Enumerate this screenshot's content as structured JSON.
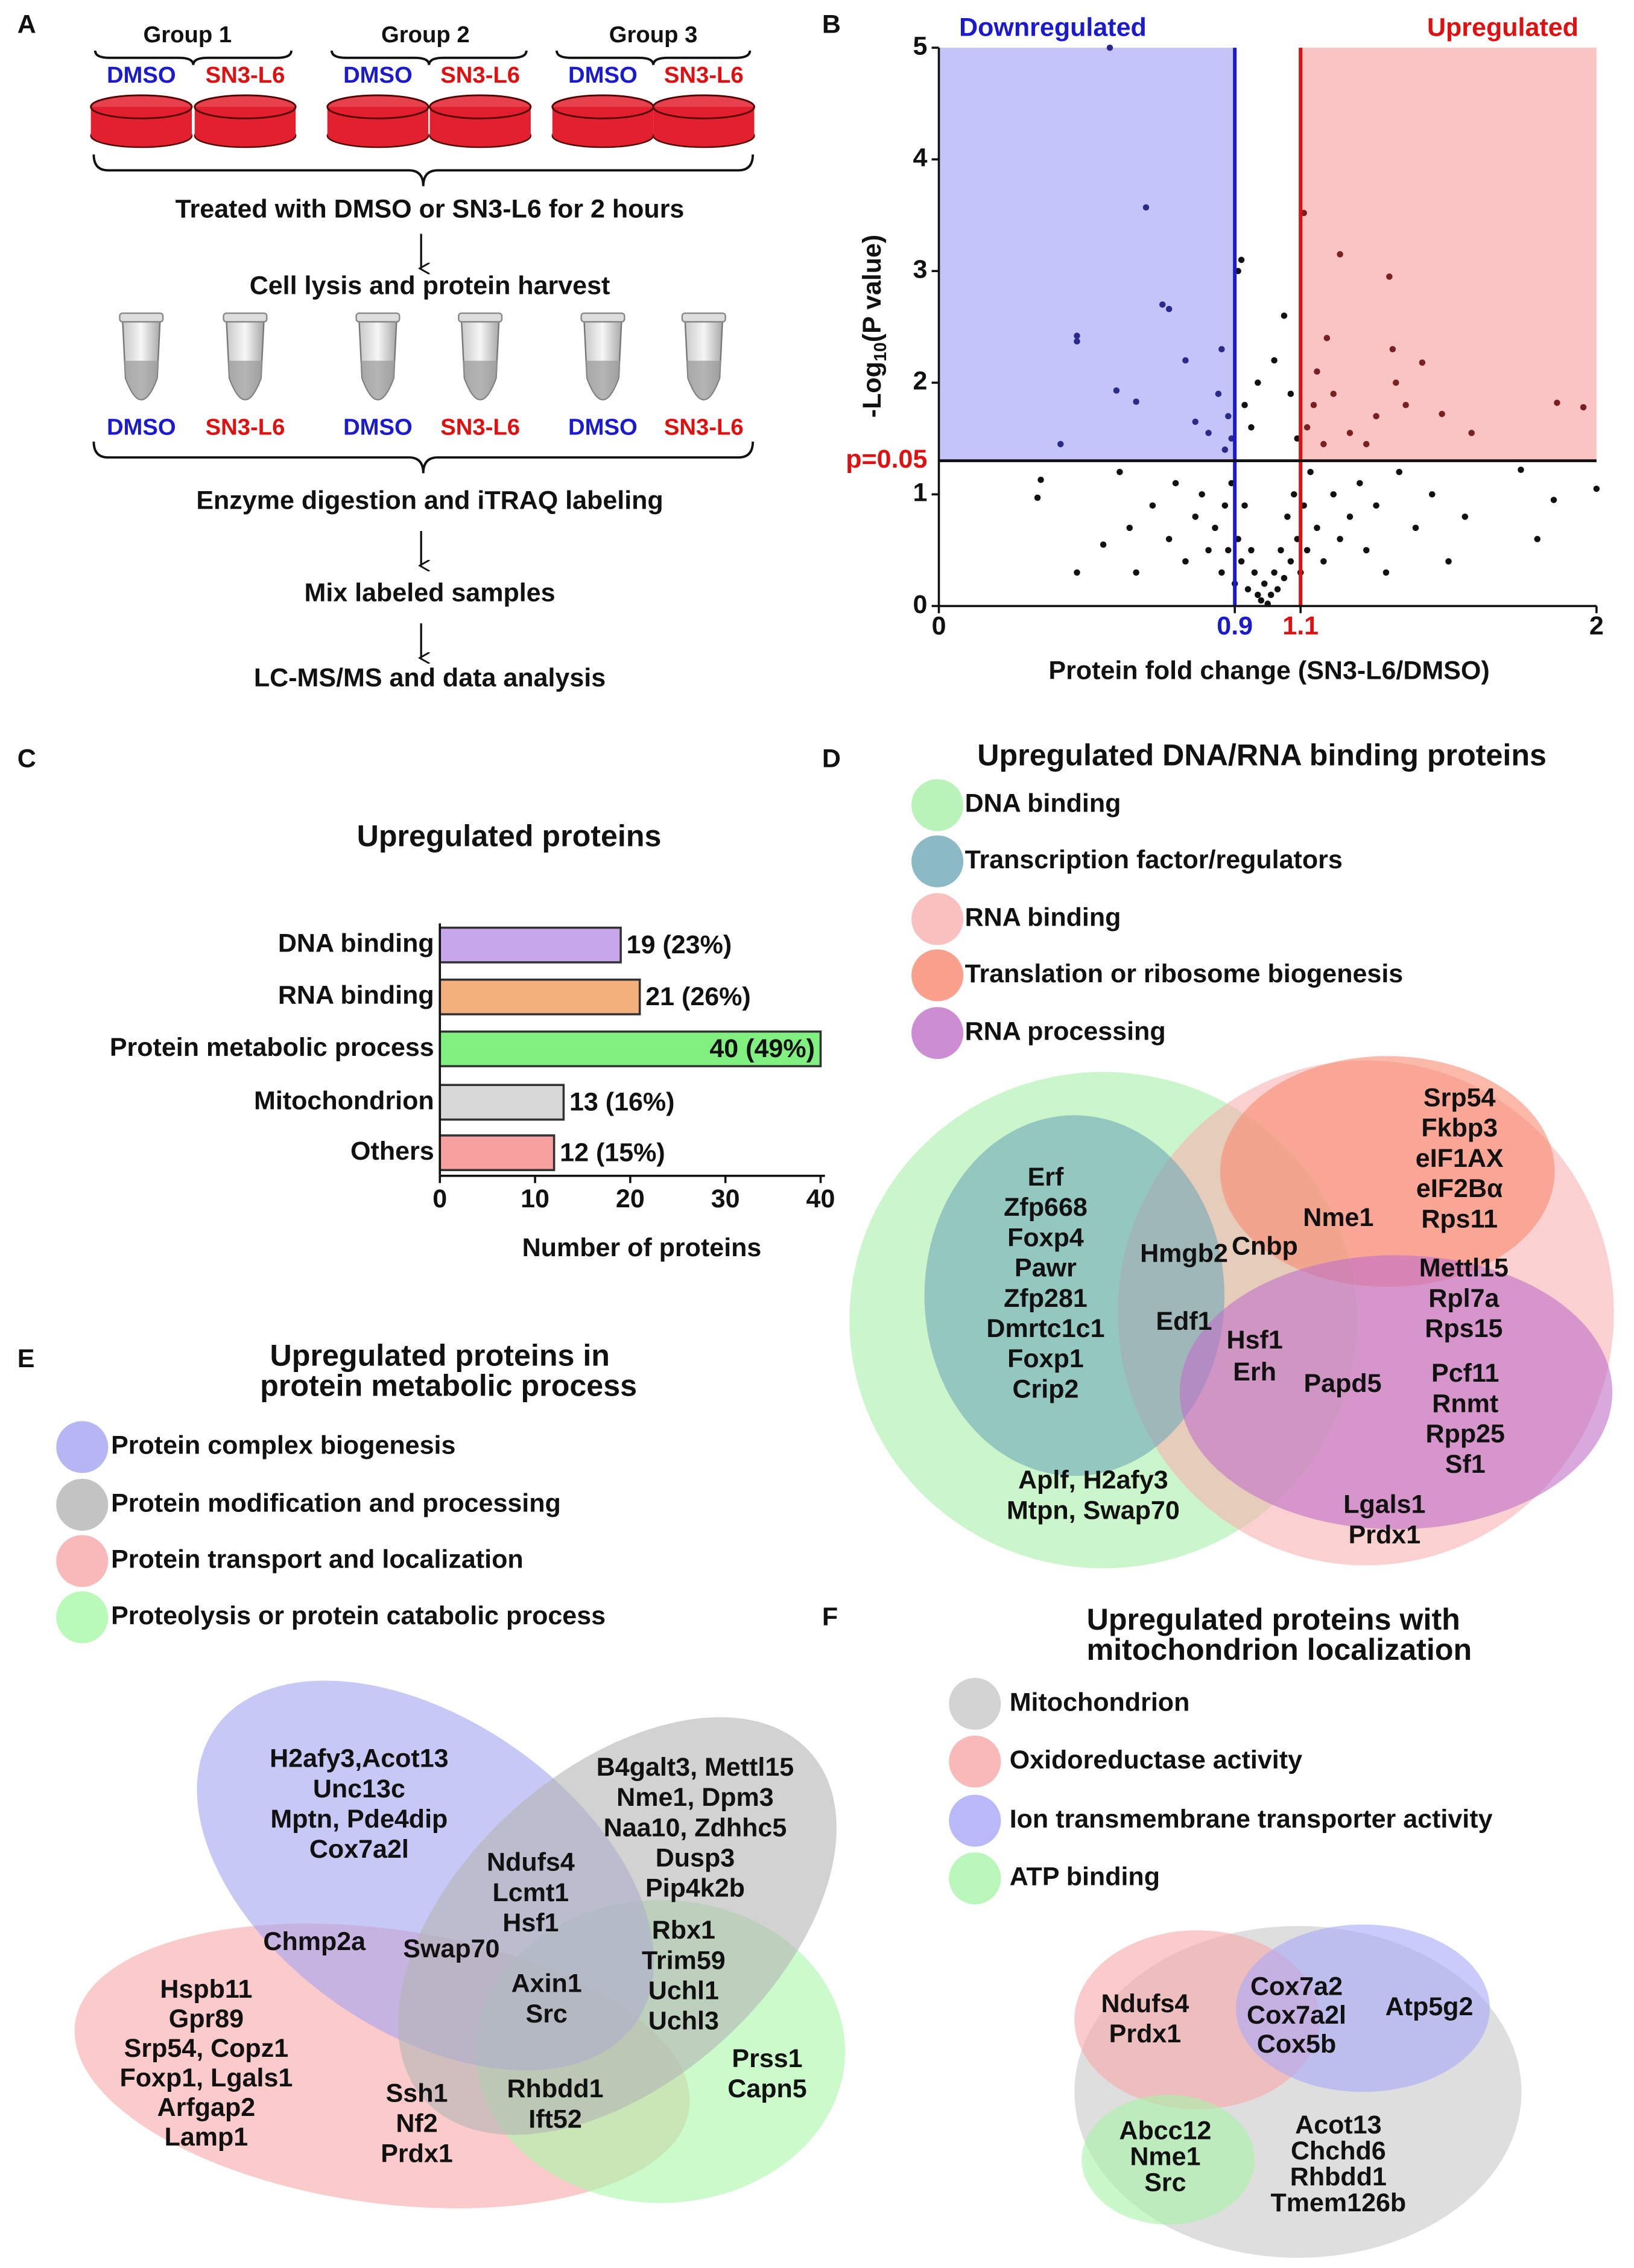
{
  "panel_labels": [
    "A",
    "B",
    "C",
    "D",
    "E",
    "F"
  ],
  "workflow": {
    "groups": [
      "Group 1",
      "Group 2",
      "Group 3"
    ],
    "dish_labels": [
      "DMSO",
      "SN3-L6"
    ],
    "label_colors": [
      "#1a1ad0",
      "#e01010"
    ],
    "dish_color": "#e2202e",
    "steps": [
      "Treated with DMSO or SN3-L6 for 2 hours",
      "Cell lysis and protein harvest",
      "Enzyme digestion and iTRAQ labeling",
      "Mix labeled samples",
      "LC-MS/MS and data analysis"
    ]
  },
  "chart_data": [
    {
      "type": "scatter",
      "annotations": [
        "Downregulated",
        "Upregulated",
        "p=0.05"
      ],
      "xlabel": "Protein fold change (SN3-L6/DMSO)",
      "ylabel": [
        "-Log",
        "10",
        "(P value)"
      ],
      "xlim": [
        0,
        2
      ],
      "ylim": [
        0,
        5
      ],
      "xticks": [
        0,
        0.9,
        1.1,
        2
      ],
      "yticks": [
        0,
        1,
        2,
        3,
        4,
        5
      ],
      "xtick_colors": [
        "#111111",
        "#1a1ad0",
        "#e01010",
        "#111111"
      ],
      "thresholds": {
        "down": 0.9,
        "up": 1.1,
        "p_line": 1.301
      },
      "down_color": "#1a1ad0",
      "up_color": "#e01010",
      "down_fill": "#c4c4fa",
      "up_fill": "#fac4c4",
      "point_colors": {
        "down": "#2a2a8a",
        "up": "#7a2020",
        "other": "#111111"
      },
      "x": [
        0.52,
        0.63,
        1.11,
        1.22,
        1.37,
        0.42,
        0.42,
        0.68,
        0.7,
        0.92,
        0.91,
        1.47,
        1.53,
        1.88,
        1.96,
        0.37,
        0.31,
        0.3,
        0.42,
        0.5,
        1.77,
        1.87,
        2.0,
        1.82,
        1.62,
        1.38,
        1.39,
        1.42,
        0.54,
        0.6,
        0.75,
        0.78,
        0.82,
        0.85,
        0.87,
        0.88,
        0.86,
        0.89,
        1.12,
        1.14,
        1.15,
        1.17,
        1.2,
        1.25,
        1.3,
        1.33,
        1.18,
        1.05,
        1.02,
        0.97,
        0.95,
        0.93,
        1.07,
        1.09,
        0.65,
        0.7,
        0.72,
        0.75,
        0.78,
        0.8,
        0.82,
        0.84,
        0.86,
        0.87,
        0.88,
        0.89,
        0.9,
        0.91,
        0.92,
        0.93,
        0.94,
        0.95,
        0.96,
        0.97,
        0.98,
        0.99,
        1.0,
        1.01,
        1.02,
        1.03,
        1.04,
        1.05,
        1.06,
        1.07,
        1.08,
        1.09,
        1.1,
        1.11,
        1.12,
        1.13,
        1.15,
        1.17,
        1.2,
        1.22,
        1.25,
        1.28,
        1.3,
        1.33,
        1.36,
        1.4,
        1.45,
        1.5,
        1.55,
        1.6,
        0.6,
        0.55,
        0.58
      ],
      "y": [
        5.0,
        3.57,
        3.52,
        3.15,
        2.95,
        2.42,
        2.37,
        2.7,
        2.66,
        3.1,
        3.0,
        2.18,
        1.72,
        1.82,
        1.78,
        1.45,
        1.13,
        0.97,
        0.3,
        0.55,
        1.22,
        0.95,
        1.05,
        0.6,
        1.55,
        2.3,
        2.0,
        1.8,
        1.93,
        1.83,
        2.2,
        1.65,
        1.55,
        1.9,
        1.4,
        1.7,
        2.3,
        1.5,
        1.6,
        1.8,
        2.1,
        1.45,
        1.9,
        1.55,
        1.45,
        1.7,
        2.4,
        2.6,
        2.2,
        2.0,
        1.6,
        1.8,
        1.9,
        1.5,
        0.9,
        0.6,
        1.1,
        0.4,
        0.8,
        1.0,
        0.5,
        0.7,
        0.3,
        0.9,
        0.5,
        1.1,
        0.2,
        0.6,
        0.4,
        0.9,
        0.15,
        0.5,
        0.3,
        0.1,
        0.05,
        0.2,
        0.02,
        0.1,
        0.3,
        0.15,
        0.5,
        0.25,
        0.8,
        0.4,
        1.0,
        0.6,
        0.3,
        0.9,
        0.5,
        1.2,
        0.7,
        0.4,
        1.0,
        0.6,
        0.8,
        1.1,
        0.5,
        0.9,
        0.3,
        1.2,
        0.7,
        1.0,
        0.4,
        0.8,
        0.3,
        1.2,
        0.7
      ]
    },
    {
      "type": "bar",
      "orientation": "horizontal",
      "title": "Upregulated proteins",
      "categories": [
        "DNA binding",
        "RNA binding",
        "Protein metabolic process",
        "Mitochondrion",
        "Others"
      ],
      "values": [
        19,
        21,
        40,
        13,
        12
      ],
      "value_labels": [
        "19 (23%)",
        "21 (26%)",
        "40 (49%)",
        "13 (16%)",
        "12 (15%)"
      ],
      "colors": [
        "#c8a8ea",
        "#f4b07c",
        "#80f080",
        "#d8d8d8",
        "#f6a0a0"
      ],
      "xlim": [
        0,
        40
      ],
      "xticks": [
        0,
        10,
        20,
        30,
        40
      ],
      "xlabel": "Number of proteins"
    }
  ],
  "venn_d": {
    "title": [
      "Upregulated DNA/RNA binding proteins"
    ],
    "sets": [
      {
        "name": "DNA binding",
        "color": "#a8f0a8"
      },
      {
        "name": "Transcription factor/regulators",
        "color": "#6fa8b8"
      },
      {
        "name": "RNA binding",
        "color": "#f8b0b0"
      },
      {
        "name": "Translation or ribosome biogenesis",
        "color": "#f88a70"
      },
      {
        "name": "RNA processing",
        "color": "#c070c8"
      }
    ],
    "labels": [
      [
        "Erf",
        "Zfp668",
        "Foxp4",
        "Pawr",
        "Zfp281",
        "Dmrtc1c1",
        "Foxp1",
        "Crip2"
      ],
      [
        "Srp54",
        "Fkbp3",
        "eIF1AX",
        "eIF2Bα",
        "Rps11"
      ],
      [
        "Nme1"
      ],
      [
        "Cnbp"
      ],
      [
        "Hmgb2",
        "Edf1"
      ],
      [
        "Hsf1",
        "Erh"
      ],
      [
        "Mettl15",
        "Rpl7a",
        "Rps15"
      ],
      [
        "Papd5"
      ],
      [
        "Pcf11",
        "Rnmt",
        "Rpp25",
        "Sf1"
      ],
      [
        "Aplf, H2afy3",
        "Mtpn, Swap70"
      ],
      [
        "Lgals1",
        "Prdx1"
      ]
    ]
  },
  "venn_e": {
    "title": [
      "Upregulated proteins in",
      "protein metabolic process"
    ],
    "sets": [
      {
        "name": "Protein complex biogenesis",
        "color": "#a4a4f2"
      },
      {
        "name": "Protein modification and processing",
        "color": "#b4b4b4"
      },
      {
        "name": "Protein transport and localization",
        "color": "#f8a8a8"
      },
      {
        "name": "Proteolysis or protein catabolic process",
        "color": "#a8f8a8"
      }
    ],
    "labels": [
      [
        "H2afy3,Acot13",
        "Unc13c",
        "Mptn, Pde4dip",
        "Cox7a2l"
      ],
      [
        "B4galt3, Mettl15",
        "Nme1, Dpm3",
        "Naa10, Zdhhc5",
        "Dusp3",
        "Pip4k2b"
      ],
      [
        "Ndufs4",
        "Lcmt1",
        "Hsf1"
      ],
      [
        "Chmp2a"
      ],
      [
        "Swap70"
      ],
      [
        "Rbx1",
        "Trim59",
        "Uchl1",
        "Uchl3"
      ],
      [
        "Axin1",
        "Src"
      ],
      [
        "Hspb11",
        "Gpr89",
        "Srp54, Copz1",
        "Foxp1, Lgals1",
        "Arfgap2",
        "Lamp1"
      ],
      [
        "Ssh1",
        "Nf2",
        "Prdx1"
      ],
      [
        "Rhbdd1",
        "Ift52"
      ],
      [
        "Prss1",
        "Capn5"
      ]
    ]
  },
  "venn_f": {
    "title": [
      "Upregulated proteins with",
      "mitochondrion localization"
    ],
    "sets": [
      {
        "name": "Mitochondrion",
        "color": "#c8c8c8"
      },
      {
        "name": "Oxidoreductase activity",
        "color": "#f8a8a8"
      },
      {
        "name": "Ion transmembrane transporter activity",
        "color": "#a8a8f8"
      },
      {
        "name": "ATP binding",
        "color": "#a8f4a8"
      }
    ],
    "labels": [
      [
        "Ndufs4",
        "Prdx1"
      ],
      [
        "Cox7a2",
        "Cox7a2l",
        "Cox5b"
      ],
      [
        "Atp5g2"
      ],
      [
        "Abcc12",
        "Nme1",
        "Src"
      ],
      [
        "Acot13",
        "Chchd6",
        "Rhbdd1",
        "Tmem126b"
      ]
    ]
  }
}
